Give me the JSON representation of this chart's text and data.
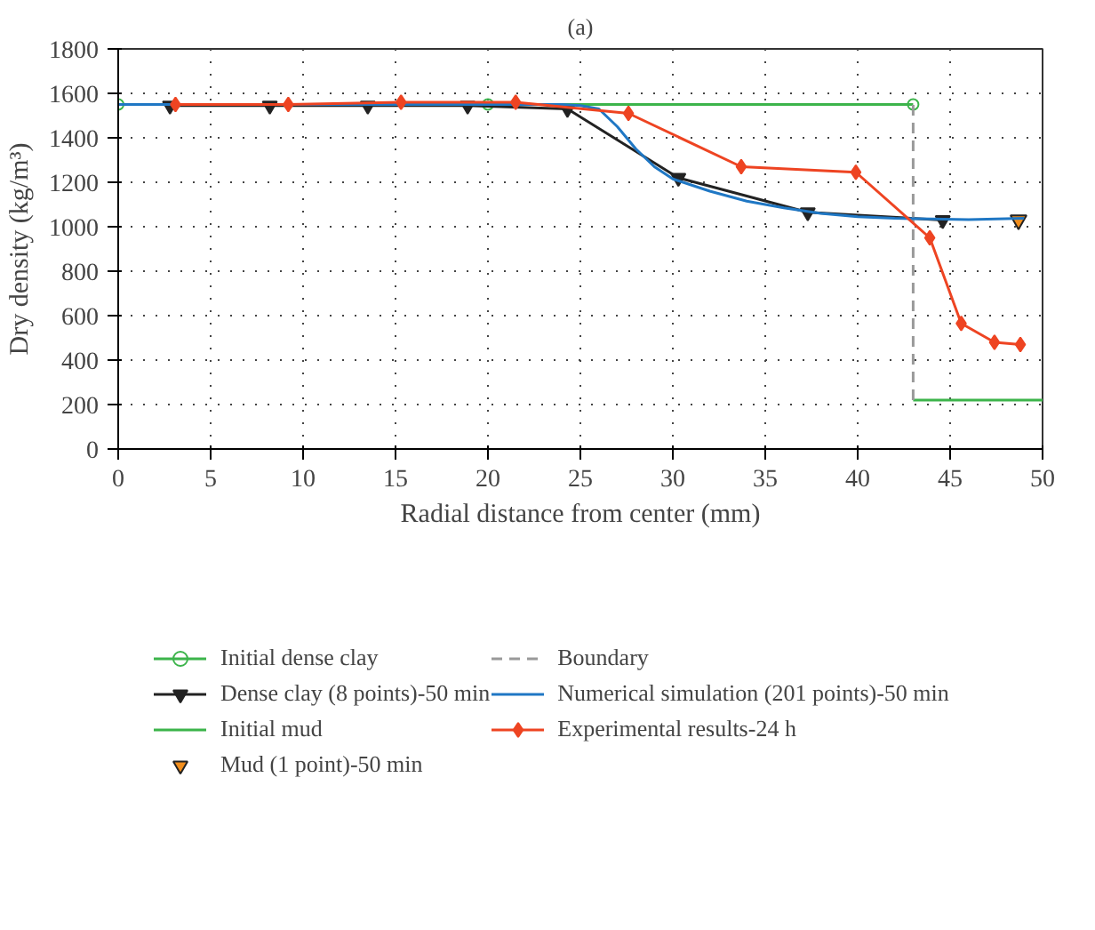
{
  "chart_data": {
    "type": "line",
    "title": "(a)",
    "xlabel": "Radial distance from center (mm)",
    "ylabel": "Dry density (kg/m³)",
    "xlim": [
      0,
      50
    ],
    "xticks": [
      0,
      5,
      10,
      15,
      20,
      25,
      30,
      35,
      40,
      45,
      50
    ],
    "ylim": [
      0,
      1800
    ],
    "yticks": [
      0,
      200,
      400,
      600,
      800,
      1000,
      1200,
      1400,
      1600,
      1800
    ],
    "grid": true,
    "legend": "bottom",
    "series": [
      {
        "name": "Initial dense clay",
        "color": "#3cb44b",
        "marker": "circle",
        "x": [
          0,
          20,
          43
        ],
        "values": [
          1550,
          1550,
          1550
        ]
      },
      {
        "name": "Dense clay (8 points)-50 min",
        "color": "#222222",
        "marker": "triangle",
        "x": [
          2.8,
          8.2,
          13.5,
          18.9,
          24.3,
          30.3,
          37.3,
          44.6
        ],
        "values": [
          1545,
          1545,
          1545,
          1545,
          1530,
          1220,
          1065,
          1030
        ]
      },
      {
        "name": "Initial mud",
        "color": "#3cb44b",
        "marker": "none",
        "x": [
          43,
          50
        ],
        "values": [
          220,
          220
        ]
      },
      {
        "name": "Mud (1 point)-50 min",
        "type": "scatter",
        "color": "#f28e1c",
        "marker": "triangle",
        "x": [
          48.7
        ],
        "values": [
          1030
        ]
      },
      {
        "name": "Boundary",
        "color": "#999999",
        "marker": "none",
        "line_style": "dashed",
        "x": [
          43,
          43
        ],
        "values": [
          220,
          1550
        ]
      },
      {
        "name": "Numerical simulation (201 points)-50 min",
        "color": "#1f77c4",
        "marker": "none",
        "x": [
          0,
          5,
          10,
          15,
          20,
          24,
          25,
          26,
          27,
          28,
          29,
          30,
          32,
          34,
          36,
          38,
          40,
          42,
          44,
          46,
          49
        ],
        "values": [
          1550,
          1550,
          1550,
          1550,
          1550,
          1550,
          1545,
          1530,
          1450,
          1350,
          1270,
          1215,
          1160,
          1115,
          1085,
          1060,
          1045,
          1038,
          1035,
          1032,
          1038
        ]
      },
      {
        "name": "Experimental results-24 h",
        "color": "#ee4422",
        "marker": "diamond",
        "x": [
          3.1,
          9.2,
          15.3,
          21.5,
          27.6,
          33.7,
          39.9,
          43.9,
          45.6,
          47.4,
          48.8
        ],
        "values": [
          1550,
          1550,
          1560,
          1560,
          1510,
          1270,
          1245,
          950,
          565,
          480,
          470
        ]
      }
    ]
  }
}
